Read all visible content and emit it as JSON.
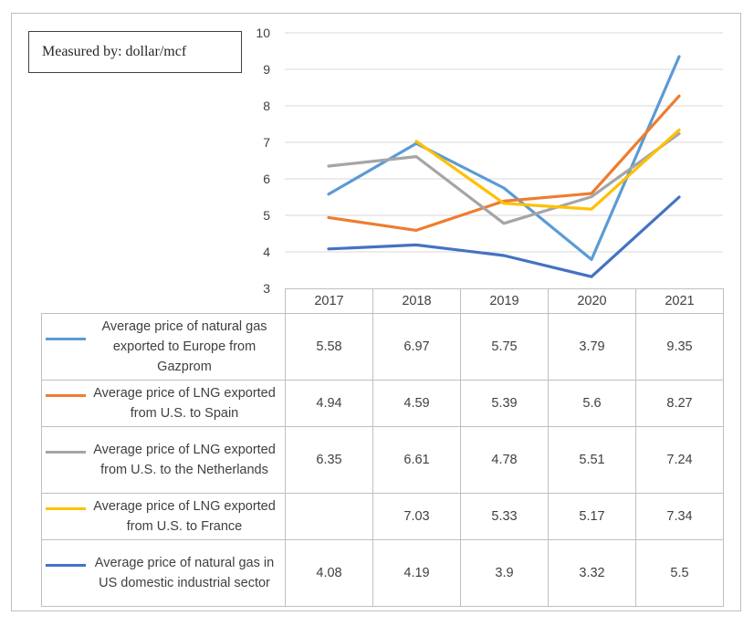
{
  "measure_label": "Measured by: dollar/mcf",
  "chart_data": {
    "type": "line",
    "categories": [
      "2017",
      "2018",
      "2019",
      "2020",
      "2021"
    ],
    "ylim": [
      3,
      10
    ],
    "yticks": [
      "3",
      "4",
      "5",
      "6",
      "7",
      "8",
      "9",
      "10"
    ],
    "grid": true,
    "series": [
      {
        "name": "Average price of natural gas exported to Europe from Gazprom",
        "color": "#5b9bd5",
        "values": [
          5.58,
          6.97,
          5.75,
          3.79,
          9.35
        ],
        "labels": [
          "5.58",
          "6.97",
          "5.75",
          "3.79",
          "9.35"
        ]
      },
      {
        "name": "Average price of LNG exported from U.S. to Spain",
        "color": "#ed7d31",
        "values": [
          4.94,
          4.59,
          5.39,
          5.6,
          8.27
        ],
        "labels": [
          "4.94",
          "4.59",
          "5.39",
          "5.6",
          "8.27"
        ]
      },
      {
        "name": "Average price of LNG exported from U.S. to the Netherlands",
        "color": "#a5a5a5",
        "values": [
          6.35,
          6.61,
          4.78,
          5.51,
          7.24
        ],
        "labels": [
          "6.35",
          "6.61",
          "4.78",
          "5.51",
          "7.24"
        ]
      },
      {
        "name": "Average price of LNG exported from U.S. to France",
        "color": "#ffc000",
        "values": [
          null,
          7.03,
          5.33,
          5.17,
          7.34
        ],
        "labels": [
          "",
          "7.03",
          "5.33",
          "5.17",
          "7.34"
        ]
      },
      {
        "name": "Average price of natural gas in US domestic industrial sector",
        "color": "#4472c4",
        "values": [
          4.08,
          4.19,
          3.9,
          3.32,
          5.5
        ],
        "labels": [
          "4.08",
          "4.19",
          "3.9",
          "3.32",
          "5.5"
        ]
      }
    ]
  }
}
